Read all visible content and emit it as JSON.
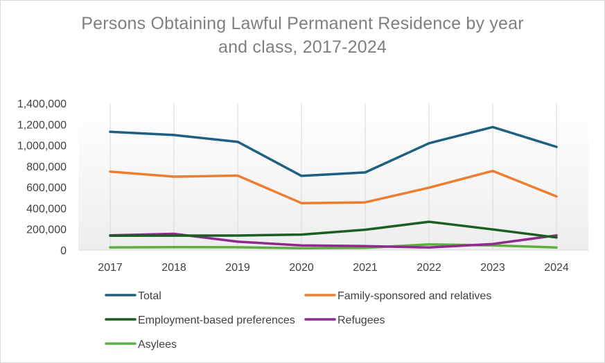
{
  "chart_data": {
    "type": "line",
    "title_line1": "Persons Obtaining Lawful Permanent Residence by year",
    "title_line2": "and class, 2017-2024",
    "categories": [
      "2017",
      "2018",
      "2019",
      "2020",
      "2021",
      "2022",
      "2023",
      "2024"
    ],
    "y_ticks": [
      "0",
      "200,000",
      "400,000",
      "600,000",
      "800,000",
      "1,000,000",
      "1,200,000",
      "1,400,000"
    ],
    "ylim": [
      0,
      1400000
    ],
    "xlabel": "",
    "ylabel": "",
    "grid": "vertical",
    "legend_position": "bottom",
    "series": [
      {
        "name": "Total",
        "color": "#1f5f7f",
        "values": [
          1127000,
          1097000,
          1032000,
          707000,
          740000,
          1018000,
          1173000,
          984000
        ]
      },
      {
        "name": "Family-sponsored and relatives",
        "color": "#ed7d31",
        "values": [
          748000,
          700000,
          710000,
          448000,
          455000,
          595000,
          755000,
          512000
        ]
      },
      {
        "name": "Employment-based preferences",
        "color": "#1a5e20",
        "values": [
          137000,
          138000,
          139000,
          148000,
          194000,
          270000,
          197000,
          120000
        ]
      },
      {
        "name": "Refugees",
        "color": "#8f2a8f",
        "values": [
          140000,
          155000,
          80000,
          45000,
          38000,
          25000,
          58000,
          140000
        ]
      },
      {
        "name": "Asylees",
        "color": "#5fad41",
        "values": [
          26000,
          28000,
          27000,
          18000,
          22000,
          55000,
          45000,
          25000
        ]
      }
    ]
  }
}
